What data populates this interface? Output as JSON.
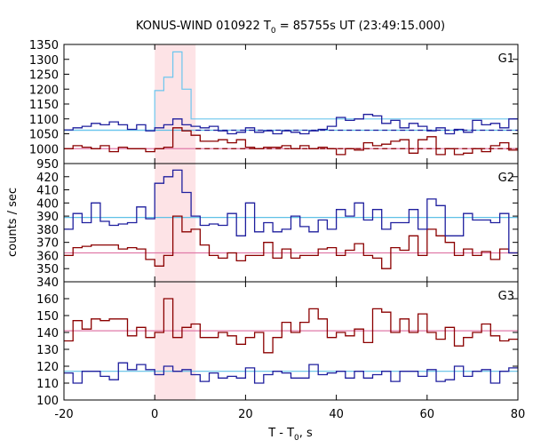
{
  "chart_data": {
    "type": "line",
    "title": {
      "prefix": "KONUS-WIND 010922 T",
      "subscript": "0",
      "suffix": " = 85755s UT (23:49:15.000)"
    },
    "xlabel": {
      "prefix": "T - T",
      "subscript": "0",
      "suffix": ", s"
    },
    "ylabel": "counts / sec",
    "xlim": [
      -20,
      80
    ],
    "x_ticks": [
      -20,
      0,
      20,
      40,
      60,
      80
    ],
    "x_tick_labels": [
      "-20",
      "0",
      "20",
      "40",
      "60",
      "80"
    ],
    "highlight_interval": [
      0,
      9
    ],
    "colors": {
      "signal_low": "#1f1f9e",
      "signal_high": "#8b0000",
      "background_low": "#5fc0e6",
      "background_high": "#e07aa8",
      "peak_trace": "#6cc6ee",
      "highlight": "#fde3e6"
    },
    "panels": [
      {
        "name": "G1",
        "ylim": [
          950,
          1350
        ],
        "y_ticks": [
          950,
          1000,
          1050,
          1100,
          1150,
          1200,
          1250,
          1300,
          1350
        ],
        "y_tick_labels": [
          "950",
          "1000",
          "1050",
          "1100",
          "1150",
          "1200",
          "1250",
          "1300",
          "1350"
        ],
        "background_low": 1062,
        "background_high": 1000,
        "bin_edges": [
          -20,
          -18,
          -16,
          -14,
          -12,
          -10,
          -8,
          -6,
          -4,
          -2,
          0,
          2,
          4,
          6,
          8,
          10,
          12,
          14,
          16,
          18,
          20,
          22,
          24,
          26,
          28,
          30,
          32,
          34,
          36,
          38,
          40,
          42,
          44,
          46,
          48,
          50,
          52,
          54,
          56,
          58,
          60,
          62,
          64,
          66,
          68,
          70,
          72,
          74,
          76,
          78,
          80
        ],
        "series_low": [
          1063,
          1070,
          1075,
          1085,
          1080,
          1090,
          1080,
          1065,
          1080,
          1060,
          1070,
          1080,
          1100,
          1080,
          1075,
          1070,
          1075,
          1060,
          1050,
          1055,
          1070,
          1055,
          1060,
          1050,
          1060,
          1055,
          1050,
          1060,
          1065,
          1075,
          1105,
          1095,
          1100,
          1115,
          1110,
          1085,
          1095,
          1070,
          1085,
          1075,
          1060,
          1070,
          1050,
          1065,
          1055,
          1095,
          1080,
          1085,
          1070,
          1100
        ],
        "series_high": [
          1000,
          1010,
          1005,
          1000,
          1010,
          990,
          1005,
          1000,
          1000,
          990,
          1000,
          1005,
          1070,
          1060,
          1045,
          1025,
          1025,
          1030,
          1020,
          1030,
          1005,
          1000,
          1005,
          1005,
          1010,
          1000,
          1010,
          1000,
          1005,
          1000,
          980,
          1000,
          995,
          1020,
          1010,
          1015,
          1025,
          1030,
          985,
          1030,
          1040,
          980,
          1000,
          980,
          985,
          1000,
          990,
          1010,
          1020,
          995
        ],
        "peak_bin_edges": [
          -20,
          0,
          2,
          4,
          6,
          8,
          80
        ],
        "peak_values": [
          1062,
          1195,
          1240,
          1325,
          1200,
          1100
        ]
      },
      {
        "name": "G2",
        "ylim": [
          340,
          430
        ],
        "y_ticks": [
          340,
          350,
          360,
          370,
          380,
          390,
          400,
          410,
          420
        ],
        "y_tick_labels": [
          "340",
          "350",
          "360",
          "370",
          "380",
          "390",
          "400",
          "410",
          "420"
        ],
        "background_low": 389,
        "background_high": 362,
        "bin_edges": [
          -20,
          -18,
          -16,
          -14,
          -12,
          -10,
          -8,
          -6,
          -4,
          -2,
          0,
          2,
          4,
          6,
          8,
          10,
          12,
          14,
          16,
          18,
          20,
          22,
          24,
          26,
          28,
          30,
          32,
          34,
          36,
          38,
          40,
          42,
          44,
          46,
          48,
          50,
          52,
          54,
          56,
          58,
          60,
          62,
          64,
          66,
          68,
          70,
          72,
          74,
          76,
          78,
          80
        ],
        "series_low": [
          380,
          392,
          385,
          400,
          386,
          383,
          384,
          385,
          397,
          388,
          415,
          420,
          425,
          408,
          390,
          383,
          384,
          383,
          392,
          375,
          400,
          378,
          385,
          378,
          380,
          390,
          382,
          378,
          387,
          380,
          395,
          390,
          400,
          387,
          395,
          380,
          385,
          385,
          395,
          380,
          403,
          398,
          375,
          375,
          392,
          387,
          387,
          385,
          392,
          362
        ],
        "series_high": [
          360,
          366,
          367,
          368,
          368,
          368,
          365,
          366,
          365,
          357,
          352,
          360,
          390,
          378,
          380,
          368,
          360,
          358,
          362,
          356,
          360,
          360,
          370,
          358,
          365,
          358,
          360,
          360,
          365,
          366,
          360,
          364,
          369,
          360,
          358,
          350,
          366,
          364,
          375,
          360,
          380,
          375,
          370,
          360,
          365,
          360,
          363,
          357,
          365,
          362
        ]
      },
      {
        "name": "G3",
        "ylim": [
          100,
          170
        ],
        "y_ticks": [
          100,
          110,
          120,
          130,
          140,
          150,
          160
        ],
        "y_tick_labels": [
          "100",
          "110",
          "120",
          "130",
          "140",
          "150",
          "160"
        ],
        "background_low": 117,
        "background_high": 141,
        "bin_edges": [
          -20,
          -18,
          -16,
          -14,
          -12,
          -10,
          -8,
          -6,
          -4,
          -2,
          0,
          2,
          4,
          6,
          8,
          10,
          12,
          14,
          16,
          18,
          20,
          22,
          24,
          26,
          28,
          30,
          32,
          34,
          36,
          38,
          40,
          42,
          44,
          46,
          48,
          50,
          52,
          54,
          56,
          58,
          60,
          62,
          64,
          66,
          68,
          70,
          72,
          74,
          76,
          78,
          80
        ],
        "series_low": [
          116,
          110,
          117,
          117,
          114,
          112,
          122,
          118,
          121,
          118,
          115,
          120,
          117,
          118,
          115,
          111,
          116,
          113,
          114,
          113,
          119,
          110,
          115,
          117,
          116,
          113,
          113,
          121,
          115,
          116,
          117,
          113,
          117,
          113,
          115,
          117,
          111,
          117,
          117,
          114,
          118,
          111,
          112,
          120,
          114,
          117,
          118,
          110,
          117,
          119
        ],
        "series_high": [
          135,
          147,
          142,
          148,
          147,
          148,
          148,
          138,
          143,
          137,
          140,
          160,
          137,
          143,
          145,
          137,
          137,
          140,
          138,
          133,
          137,
          140,
          128,
          137,
          146,
          140,
          146,
          154,
          148,
          137,
          140,
          138,
          142,
          134,
          154,
          152,
          140,
          148,
          140,
          151,
          140,
          136,
          143,
          132,
          137,
          140,
          145,
          138,
          135,
          136
        ]
      }
    ]
  }
}
